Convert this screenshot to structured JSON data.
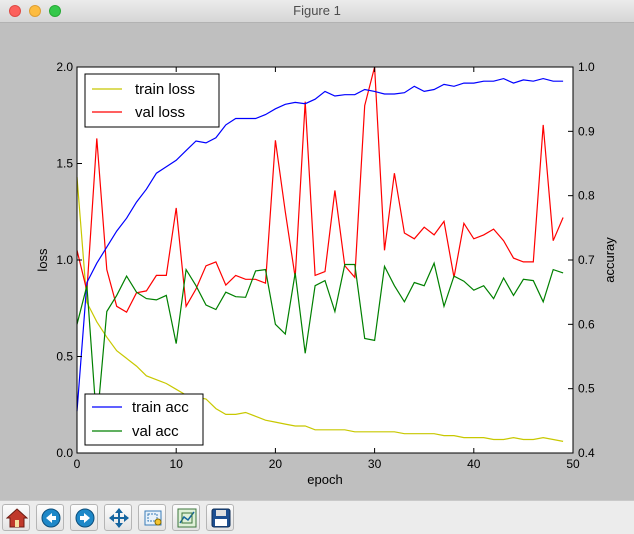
{
  "window": {
    "title": "Figure 1"
  },
  "toolbar": {
    "buttons": [
      {
        "name": "home-button",
        "icon": "home-icon"
      },
      {
        "name": "back-button",
        "icon": "back-arrow-icon"
      },
      {
        "name": "forward-button",
        "icon": "forward-arrow-icon"
      },
      {
        "name": "pan-button",
        "icon": "move-icon"
      },
      {
        "name": "zoom-button",
        "icon": "zoom-rect-icon"
      },
      {
        "name": "configure-subplots-button",
        "icon": "subplots-icon"
      },
      {
        "name": "save-button",
        "icon": "floppy-disk-icon"
      }
    ]
  },
  "colors": {
    "train_loss": "#c8c800",
    "val_loss": "#ff0000",
    "train_acc": "#0000ff",
    "val_acc": "#008000",
    "figure_bg": "#bfbfbf"
  },
  "chart_data": {
    "type": "line",
    "xlabel": "epoch",
    "ylabel": "loss",
    "y2label": "accuray",
    "xlim": [
      0,
      50
    ],
    "ylim": [
      0.0,
      2.0
    ],
    "y2lim": [
      0.4,
      1.0
    ],
    "xticks": [
      "0",
      "10",
      "20",
      "30",
      "40",
      "50"
    ],
    "yticks": [
      "0.0",
      "0.5",
      "1.0",
      "1.5",
      "2.0"
    ],
    "y2ticks": [
      "0.4",
      "0.5",
      "0.6",
      "0.7",
      "0.8",
      "0.9",
      "1.0"
    ],
    "grid": false,
    "legend_top": {
      "placement": "top-left",
      "entries": [
        "train loss",
        "val loss"
      ]
    },
    "legend_bottom": {
      "placement": "bottom-left",
      "entries": [
        "train acc",
        "val acc"
      ]
    },
    "x": [
      0,
      1,
      2,
      3,
      4,
      5,
      6,
      7,
      8,
      9,
      10,
      11,
      12,
      13,
      14,
      15,
      16,
      17,
      18,
      19,
      20,
      21,
      22,
      23,
      24,
      25,
      26,
      27,
      28,
      29,
      30,
      31,
      32,
      33,
      34,
      35,
      36,
      37,
      38,
      39,
      40,
      41,
      42,
      43,
      44,
      45,
      46,
      47,
      48,
      49
    ],
    "series": [
      {
        "name": "train loss",
        "axis": "left",
        "color": "#c8c800",
        "values": [
          1.43,
          0.78,
          0.68,
          0.6,
          0.53,
          0.49,
          0.45,
          0.4,
          0.38,
          0.36,
          0.33,
          0.3,
          0.29,
          0.28,
          0.23,
          0.2,
          0.2,
          0.21,
          0.19,
          0.17,
          0.16,
          0.15,
          0.14,
          0.14,
          0.12,
          0.12,
          0.12,
          0.12,
          0.11,
          0.11,
          0.11,
          0.11,
          0.11,
          0.1,
          0.1,
          0.1,
          0.1,
          0.09,
          0.09,
          0.08,
          0.08,
          0.08,
          0.07,
          0.07,
          0.08,
          0.07,
          0.07,
          0.08,
          0.07,
          0.06
        ]
      },
      {
        "name": "val loss",
        "axis": "left",
        "color": "#ff0000",
        "values": [
          1.05,
          0.84,
          1.63,
          0.95,
          0.76,
          0.73,
          0.83,
          0.84,
          0.92,
          0.92,
          1.27,
          0.76,
          0.85,
          0.97,
          0.99,
          0.87,
          0.92,
          0.9,
          0.9,
          0.88,
          1.62,
          1.25,
          0.91,
          1.82,
          0.92,
          0.94,
          1.36,
          0.97,
          0.91,
          1.8,
          2.0,
          1.05,
          1.45,
          1.14,
          1.11,
          1.17,
          1.13,
          1.2,
          0.91,
          1.19,
          1.11,
          1.13,
          1.16,
          1.1,
          1.01,
          0.99,
          0.99,
          1.7,
          1.1,
          1.22
        ]
      },
      {
        "name": "train acc",
        "axis": "right",
        "color": "#0000ff",
        "values": [
          0.465,
          0.665,
          0.695,
          0.72,
          0.745,
          0.765,
          0.79,
          0.81,
          0.835,
          0.845,
          0.855,
          0.87,
          0.885,
          0.882,
          0.89,
          0.91,
          0.92,
          0.92,
          0.92,
          0.926,
          0.935,
          0.942,
          0.945,
          0.943,
          0.95,
          0.962,
          0.955,
          0.957,
          0.957,
          0.965,
          0.962,
          0.958,
          0.958,
          0.96,
          0.97,
          0.962,
          0.965,
          0.973,
          0.97,
          0.975,
          0.975,
          0.978,
          0.978,
          0.982,
          0.975,
          0.98,
          0.978,
          0.982,
          0.978,
          0.978
        ]
      },
      {
        "name": "val acc",
        "axis": "right",
        "color": "#008000",
        "values": [
          0.6,
          0.66,
          0.445,
          0.62,
          0.645,
          0.675,
          0.65,
          0.64,
          0.638,
          0.645,
          0.57,
          0.685,
          0.66,
          0.63,
          0.623,
          0.65,
          0.643,
          0.642,
          0.683,
          0.685,
          0.6,
          0.585,
          0.68,
          0.555,
          0.66,
          0.668,
          0.62,
          0.693,
          0.693,
          0.578,
          0.575,
          0.69,
          0.66,
          0.635,
          0.665,
          0.66,
          0.695,
          0.628,
          0.675,
          0.667,
          0.653,
          0.66,
          0.64,
          0.672,
          0.645,
          0.67,
          0.668,
          0.635,
          0.685,
          0.68
        ]
      }
    ]
  }
}
